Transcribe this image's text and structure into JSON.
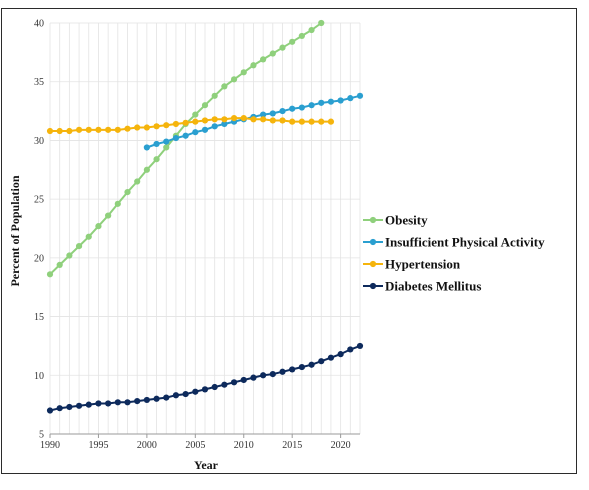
{
  "chart_data": {
    "type": "line",
    "title": "",
    "xlabel": "Year",
    "ylabel": "Percent of Population",
    "xlim": [
      1990,
      2022
    ],
    "ylim": [
      5,
      40
    ],
    "x_ticks": [
      1990,
      1995,
      2000,
      2005,
      2010,
      2015,
      2020
    ],
    "y_ticks": [
      5,
      10,
      15,
      20,
      25,
      30,
      35,
      40
    ],
    "grid": "vertical-and-horizontal",
    "legend_position": "right",
    "series": [
      {
        "name": "Obesity",
        "color": "#8fd07c",
        "x": [
          1990,
          1991,
          1992,
          1993,
          1994,
          1995,
          1996,
          1997,
          1998,
          1999,
          2000,
          2001,
          2002,
          2003,
          2004,
          2005,
          2006,
          2007,
          2008,
          2009,
          2010,
          2011,
          2012,
          2013,
          2014,
          2015,
          2016,
          2017,
          2018
        ],
        "values": [
          18.6,
          19.4,
          20.2,
          21.0,
          21.8,
          22.7,
          23.6,
          24.6,
          25.6,
          26.5,
          27.5,
          28.4,
          29.4,
          30.4,
          31.4,
          32.2,
          33.0,
          33.8,
          34.6,
          35.2,
          35.8,
          36.4,
          36.9,
          37.4,
          37.9,
          38.4,
          38.9,
          39.4,
          40.0
        ]
      },
      {
        "name": "Insufficient Physical Activity",
        "color": "#2a9fd0",
        "x": [
          2000,
          2001,
          2002,
          2003,
          2004,
          2005,
          2006,
          2007,
          2008,
          2009,
          2010,
          2011,
          2012,
          2013,
          2014,
          2015,
          2016,
          2017,
          2018,
          2019,
          2020,
          2021,
          2022
        ],
        "values": [
          29.4,
          29.7,
          29.9,
          30.2,
          30.4,
          30.7,
          30.9,
          31.2,
          31.4,
          31.6,
          31.8,
          32.0,
          32.2,
          32.3,
          32.5,
          32.7,
          32.8,
          33.0,
          33.2,
          33.3,
          33.4,
          33.6,
          33.8
        ]
      },
      {
        "name": "Hypertension",
        "color": "#f5b40c",
        "x": [
          1990,
          1991,
          1992,
          1993,
          1994,
          1995,
          1996,
          1997,
          1998,
          1999,
          2000,
          2001,
          2002,
          2003,
          2004,
          2005,
          2006,
          2007,
          2008,
          2009,
          2010,
          2011,
          2012,
          2013,
          2014,
          2015,
          2016,
          2017,
          2018,
          2019
        ],
        "values": [
          30.8,
          30.8,
          30.8,
          30.9,
          30.9,
          30.9,
          30.9,
          30.9,
          31.0,
          31.1,
          31.1,
          31.2,
          31.3,
          31.4,
          31.5,
          31.6,
          31.7,
          31.8,
          31.8,
          31.9,
          31.9,
          31.8,
          31.8,
          31.7,
          31.7,
          31.6,
          31.6,
          31.6,
          31.6,
          31.6
        ]
      },
      {
        "name": "Diabetes Mellitus",
        "color": "#0d2a5c",
        "x": [
          1990,
          1991,
          1992,
          1993,
          1994,
          1995,
          1996,
          1997,
          1998,
          1999,
          2000,
          2001,
          2002,
          2003,
          2004,
          2005,
          2006,
          2007,
          2008,
          2009,
          2010,
          2011,
          2012,
          2013,
          2014,
          2015,
          2016,
          2017,
          2018,
          2019,
          2020,
          2021,
          2022
        ],
        "values": [
          7.0,
          7.2,
          7.3,
          7.4,
          7.5,
          7.6,
          7.6,
          7.7,
          7.7,
          7.8,
          7.9,
          8.0,
          8.1,
          8.3,
          8.4,
          8.6,
          8.8,
          9.0,
          9.2,
          9.4,
          9.6,
          9.8,
          10.0,
          10.1,
          10.3,
          10.5,
          10.7,
          10.9,
          11.2,
          11.5,
          11.8,
          12.2,
          12.5
        ]
      }
    ]
  }
}
